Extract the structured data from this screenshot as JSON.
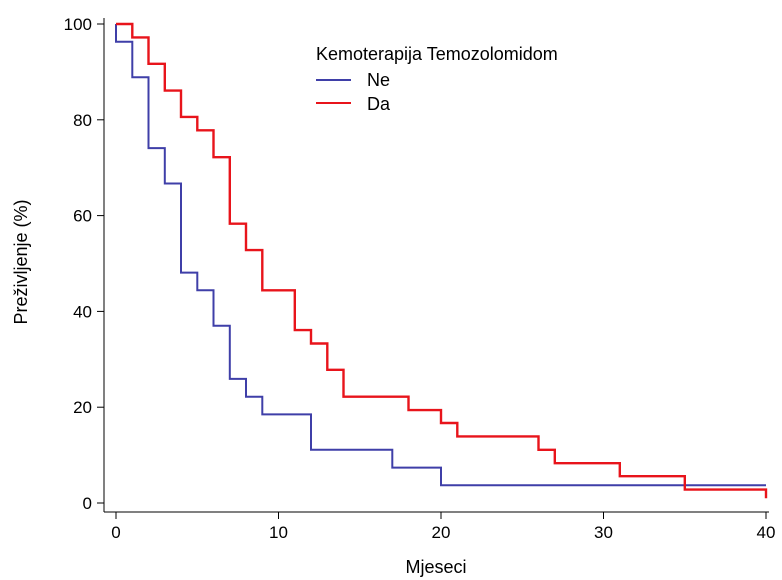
{
  "chart_data": {
    "type": "line",
    "step": true,
    "xlabel": "Mjeseci",
    "ylabel": "Preživljenje  (%)",
    "xlim": [
      0,
      40
    ],
    "ylim": [
      0,
      100
    ],
    "xticks": [
      0,
      10,
      20,
      30,
      40
    ],
    "yticks": [
      0,
      20,
      40,
      60,
      80,
      100
    ],
    "x_tick_labels": [
      "0",
      "10",
      "20",
      "30",
      "40"
    ],
    "y_tick_labels": [
      "0",
      "20",
      "40",
      "60",
      "80",
      "100"
    ],
    "grid": false,
    "legend": {
      "title": "Kemoterapija Temozolomidom",
      "placement": "top-center",
      "entries": [
        "Ne",
        "Da"
      ]
    },
    "series": [
      {
        "name": "Ne",
        "color": "#3f3fa8",
        "x": [
          0,
          0,
          1,
          1,
          2,
          2,
          3,
          3,
          4,
          4,
          5,
          5,
          6,
          6,
          7,
          7,
          8,
          8,
          9,
          9,
          12,
          12,
          17,
          17,
          20,
          20,
          40
        ],
        "y": [
          100,
          96.3,
          96.3,
          88.9,
          88.9,
          74.1,
          74.1,
          66.7,
          66.7,
          48.1,
          48.1,
          44.4,
          44.4,
          37,
          37,
          25.9,
          25.9,
          22.2,
          22.2,
          18.5,
          18.5,
          11.1,
          11.1,
          7.4,
          7.4,
          3.7,
          3.7
        ]
      },
      {
        "name": "Da",
        "color": "#e8141b",
        "x": [
          0,
          1,
          1,
          2,
          2,
          3,
          3,
          4,
          4,
          5,
          5,
          6,
          6,
          7,
          7,
          8,
          8,
          9,
          9,
          11,
          11,
          12,
          12,
          13,
          13,
          14,
          14,
          18,
          18,
          20,
          20,
          21,
          21,
          26,
          26,
          27,
          27,
          31,
          31,
          35,
          35,
          40,
          40
        ],
        "y": [
          100,
          100,
          97.2,
          97.2,
          91.7,
          91.7,
          86.1,
          86.1,
          80.6,
          80.6,
          77.8,
          77.8,
          72.2,
          72.2,
          58.3,
          58.3,
          52.8,
          52.8,
          44.4,
          44.4,
          36.1,
          36.1,
          33.3,
          33.3,
          27.8,
          27.8,
          22.2,
          22.2,
          19.4,
          19.4,
          16.7,
          16.7,
          13.9,
          13.9,
          11.1,
          11.1,
          8.3,
          8.3,
          5.6,
          5.6,
          2.8,
          2.8,
          1.0
        ]
      }
    ]
  }
}
